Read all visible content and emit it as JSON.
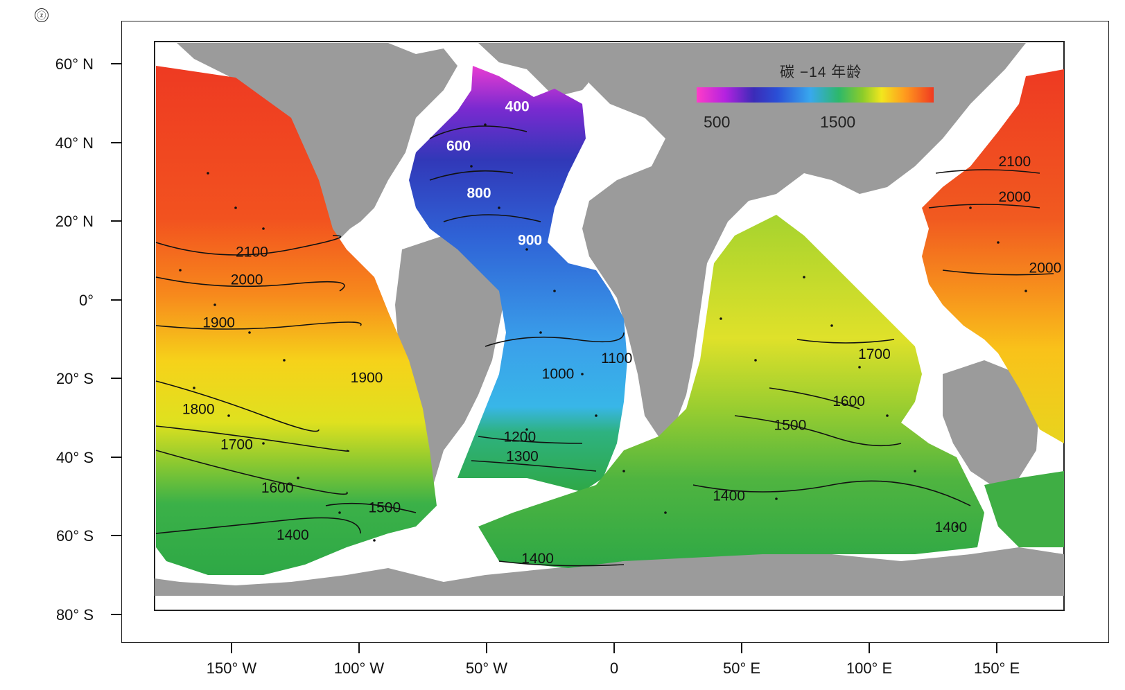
{
  "figure_label": "ⓩ",
  "legend": {
    "title": "碳 −14 年龄",
    "tick_labels": [
      "500",
      "1500"
    ],
    "gradient_colors": [
      "#ff3cc8",
      "#b422e0",
      "#3b2bb8",
      "#2a4fd6",
      "#38a8ee",
      "#2db86a",
      "#8ccc2a",
      "#f2e61e",
      "#ff9a1e",
      "#f03a20"
    ]
  },
  "axes": {
    "latitude_labels": [
      "60° N",
      "40° N",
      "20° N",
      "0°",
      "20° S",
      "40° S",
      "60° S",
      "80° S"
    ],
    "longitude_labels": [
      "150° W",
      "100° W",
      "50° W",
      "0",
      "50° E",
      "100° E",
      "150° E"
    ]
  },
  "contour_labels": [
    {
      "text": "400",
      "lon": -38,
      "lat": 48
    },
    {
      "text": "600",
      "lon": -61,
      "lat": 38
    },
    {
      "text": "800",
      "lon": -53,
      "lat": 26
    },
    {
      "text": "900",
      "lon": -33,
      "lat": 14
    },
    {
      "text": "1000",
      "lon": -22,
      "lat": -20
    },
    {
      "text": "1100",
      "lon": 1,
      "lat": -16
    },
    {
      "text": "1200",
      "lon": -37,
      "lat": -36
    },
    {
      "text": "1300",
      "lon": -36,
      "lat": -41
    },
    {
      "text": "2100",
      "lon": -142,
      "lat": 11
    },
    {
      "text": "2000",
      "lon": -144,
      "lat": 4
    },
    {
      "text": "1900",
      "lon": -155,
      "lat": -7
    },
    {
      "text": "1900",
      "lon": -97,
      "lat": -21
    },
    {
      "text": "1800",
      "lon": -163,
      "lat": -29
    },
    {
      "text": "1700",
      "lon": -148,
      "lat": -38
    },
    {
      "text": "1600",
      "lon": -132,
      "lat": -49
    },
    {
      "text": "1500",
      "lon": -90,
      "lat": -54
    },
    {
      "text": "1400",
      "lon": -126,
      "lat": -61
    },
    {
      "text": "1400",
      "lon": -30,
      "lat": -67
    },
    {
      "text": "1400",
      "lon": 45,
      "lat": -51
    },
    {
      "text": "1500",
      "lon": 69,
      "lat": -33
    },
    {
      "text": "1600",
      "lon": 92,
      "lat": -27
    },
    {
      "text": "1700",
      "lon": 102,
      "lat": -15
    },
    {
      "text": "1400",
      "lon": 132,
      "lat": -59
    },
    {
      "text": "2100",
      "lon": 157,
      "lat": 34
    },
    {
      "text": "2000",
      "lon": 157,
      "lat": 25
    },
    {
      "text": "2000",
      "lon": 169,
      "lat": 7
    }
  ]
}
